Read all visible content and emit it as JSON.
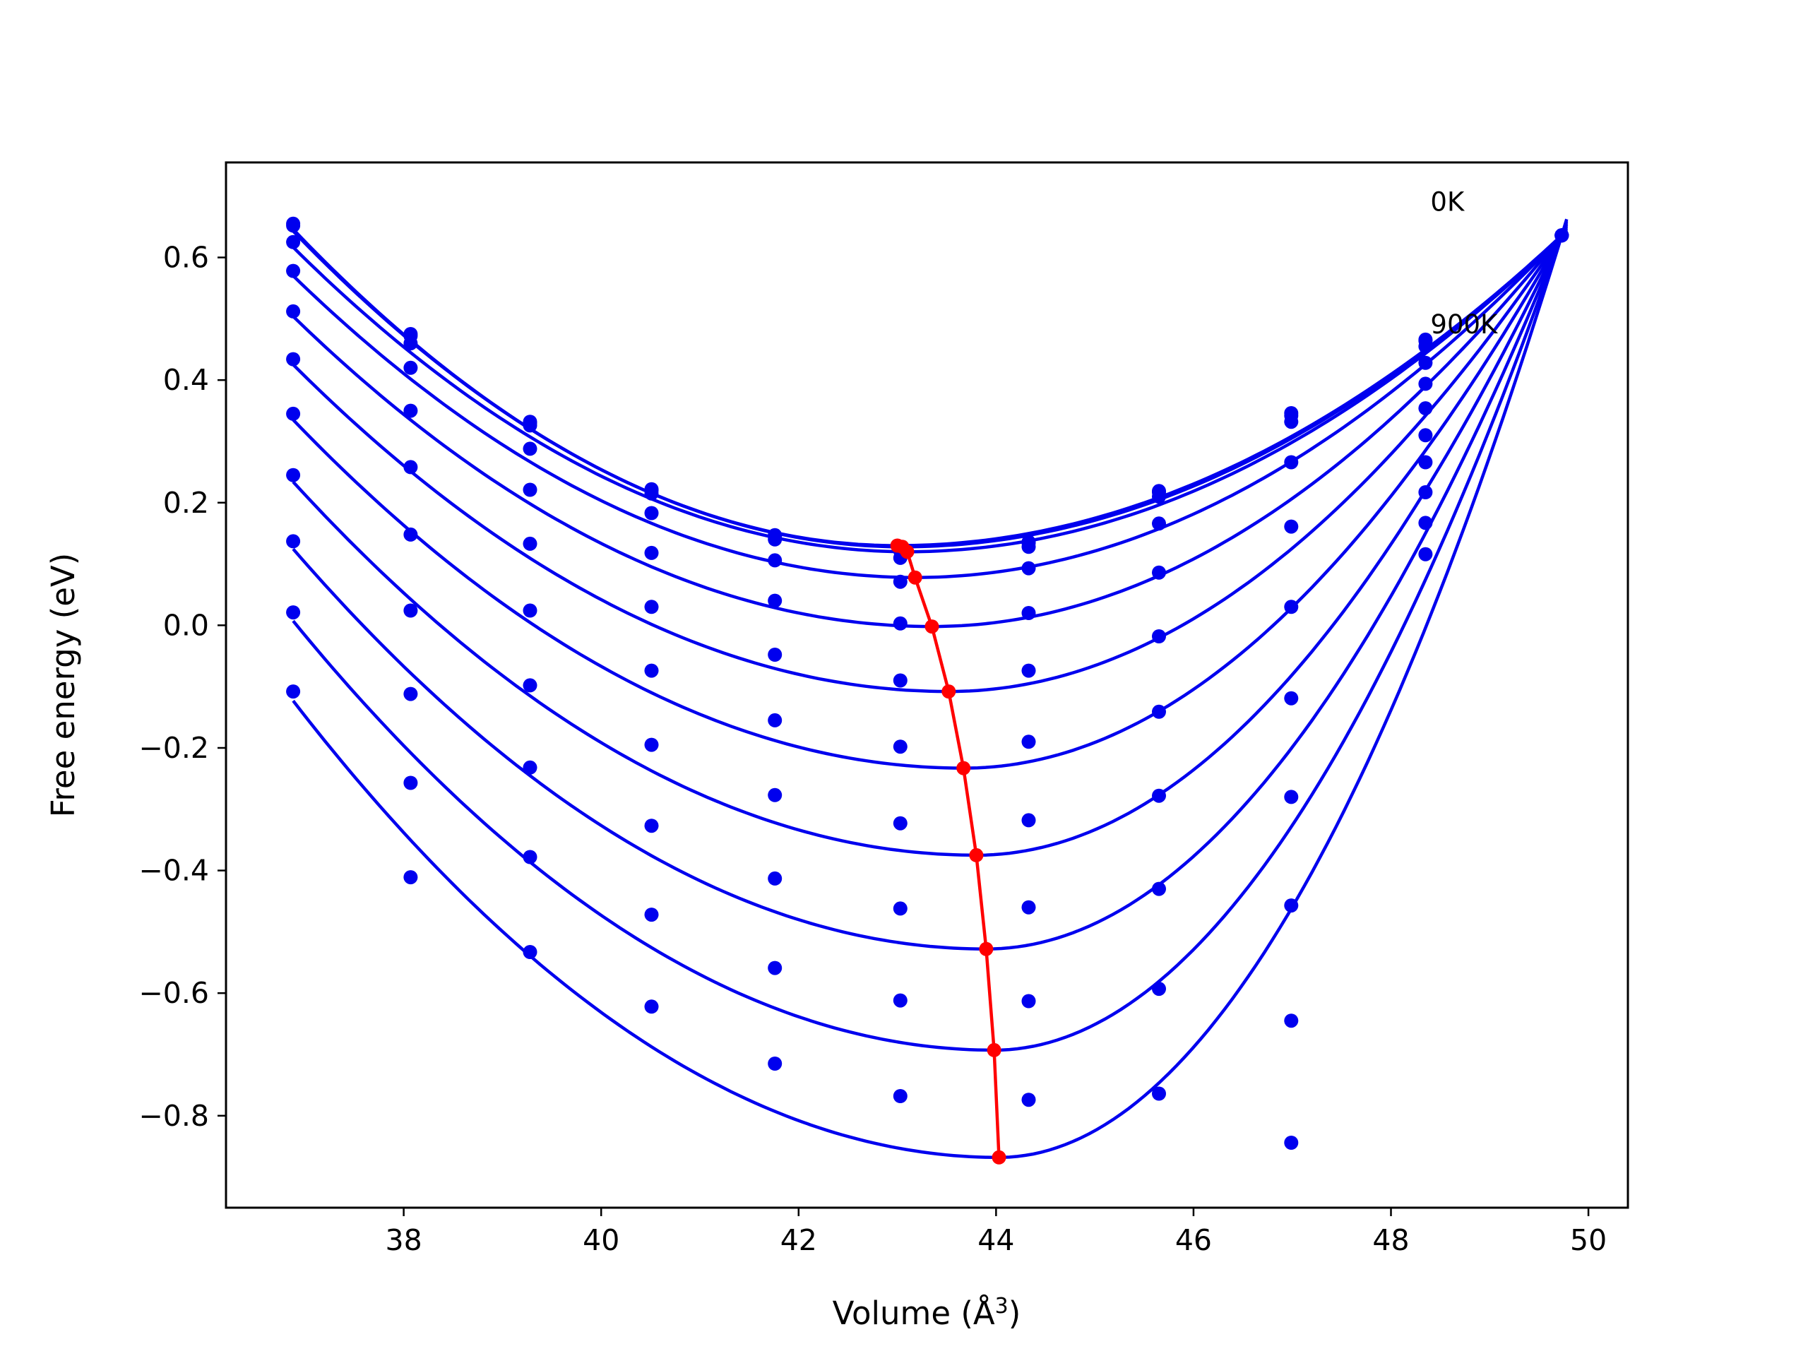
{
  "chart_data": {
    "type": "line",
    "title": "",
    "xlabel": "Volume (Å",
    "xlabel_sup": "3",
    "xlabel_end": ")",
    "ylabel": "Free energy (eV)",
    "xlim": [
      36.2,
      50.4
    ],
    "ylim": [
      -0.95,
      0.755
    ],
    "xticks": [
      38,
      40,
      42,
      44,
      46,
      48,
      50
    ],
    "yticks": [
      -0.8,
      -0.6,
      -0.4,
      -0.2,
      0.0,
      0.2,
      0.4,
      0.6
    ],
    "ytick_labels": [
      "−0.8",
      "−0.6",
      "−0.4",
      "−0.2",
      "0.0",
      "0.2",
      "0.4",
      "0.6"
    ],
    "grid": false,
    "annotations": [
      {
        "text": "0K",
        "x": 48.4,
        "y": 0.69
      },
      {
        "text": "900K",
        "x": 48.4,
        "y": 0.49
      }
    ],
    "volumes": [
      36.88,
      38.07,
      39.28,
      40.51,
      41.76,
      43.03,
      44.33,
      45.65,
      46.99,
      48.35,
      49.73
    ],
    "series": [
      {
        "label": "0K",
        "color": "#0000ee",
        "min_volume": 43.0,
        "min_energy": 0.13,
        "points": [
          0.655,
          0.475,
          0.332,
          0.222,
          0.147,
          0.123,
          0.136,
          0.219,
          0.346,
          0.466,
          0.636
        ]
      },
      {
        "color": "#0000ee",
        "min_volume": 43.05,
        "min_energy": 0.128,
        "points": [
          0.652,
          0.472,
          0.33,
          0.22,
          0.145,
          0.121,
          0.134,
          0.217,
          0.342,
          0.464,
          0.636
        ]
      },
      {
        "color": "#0000ee",
        "min_volume": 43.1,
        "min_energy": 0.12,
        "points": [
          0.625,
          0.46,
          0.326,
          0.215,
          0.14,
          0.11,
          0.128,
          0.21,
          0.332,
          0.455,
          0.636
        ]
      },
      {
        "color": "#0000ee",
        "min_volume": 43.18,
        "min_energy": 0.078,
        "points": [
          0.578,
          0.42,
          0.288,
          0.183,
          0.106,
          0.071,
          0.093,
          0.166,
          0.266,
          0.428,
          0.636
        ]
      },
      {
        "color": "#0000ee",
        "min_volume": 43.35,
        "min_energy": -0.002,
        "points": [
          0.512,
          0.35,
          0.221,
          0.118,
          0.04,
          0.003,
          0.02,
          0.086,
          0.161,
          0.394,
          0.636
        ]
      },
      {
        "color": "#0000ee",
        "min_volume": 43.52,
        "min_energy": -0.108,
        "points": [
          0.434,
          0.258,
          0.133,
          0.03,
          -0.048,
          -0.09,
          -0.074,
          -0.018,
          0.03,
          0.354,
          0.636
        ]
      },
      {
        "color": "#0000ee",
        "min_volume": 43.67,
        "min_energy": -0.233,
        "points": [
          0.345,
          0.148,
          0.024,
          -0.074,
          -0.155,
          -0.198,
          -0.19,
          -0.141,
          -0.119,
          0.31,
          0.636
        ]
      },
      {
        "color": "#0000ee",
        "min_volume": 43.8,
        "min_energy": -0.375,
        "points": [
          0.245,
          0.024,
          -0.098,
          -0.195,
          -0.277,
          -0.323,
          -0.318,
          -0.278,
          -0.28,
          0.266,
          0.636
        ]
      },
      {
        "color": "#0000ee",
        "min_volume": 43.9,
        "min_energy": -0.528,
        "points": [
          0.137,
          -0.112,
          -0.232,
          -0.327,
          -0.413,
          -0.462,
          -0.46,
          -0.43,
          -0.457,
          0.217,
          0.636
        ]
      },
      {
        "color": "#0000ee",
        "min_volume": 43.98,
        "min_energy": -0.693,
        "points": [
          0.021,
          -0.257,
          -0.378,
          -0.472,
          -0.559,
          -0.612,
          -0.613,
          -0.593,
          -0.645,
          0.167,
          0.636
        ]
      },
      {
        "label": "900K",
        "color": "#0000ee",
        "min_volume": 44.03,
        "min_energy": -0.868,
        "points": [
          -0.108,
          -0.411,
          -0.533,
          -0.622,
          -0.715,
          -0.768,
          -0.774,
          -0.764,
          -0.844,
          0.116,
          0.636
        ]
      }
    ],
    "minimum_curve": {
      "color": "#ff0000",
      "x": [
        43.0,
        43.05,
        43.1,
        43.18,
        43.35,
        43.52,
        43.67,
        43.8,
        43.9,
        43.98,
        44.03
      ],
      "y": [
        0.13,
        0.128,
        0.12,
        0.078,
        -0.002,
        -0.108,
        -0.233,
        -0.375,
        -0.528,
        -0.693,
        -0.868
      ]
    }
  }
}
